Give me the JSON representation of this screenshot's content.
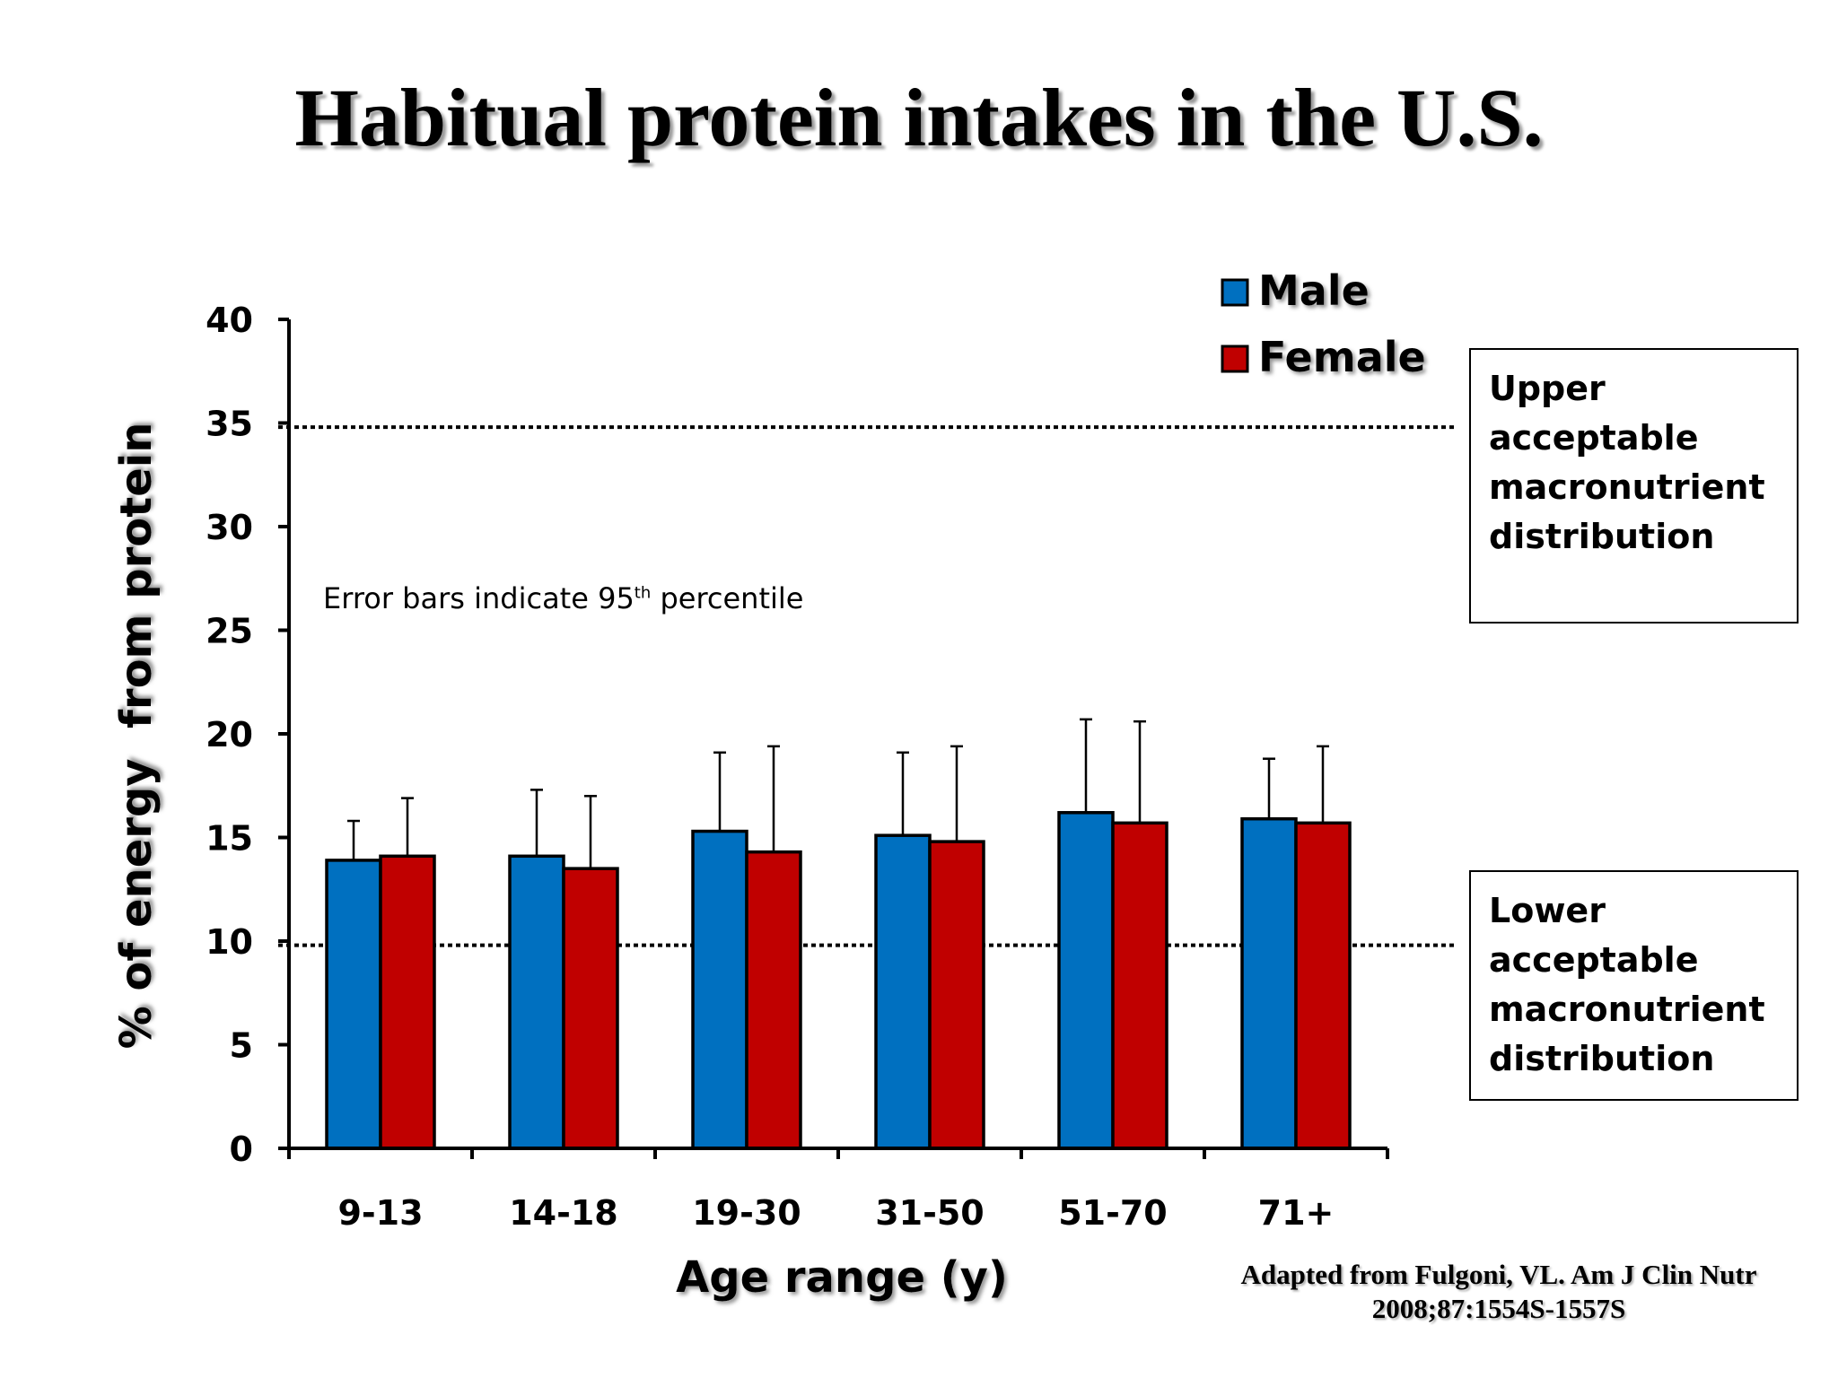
{
  "title": "Habitual protein intakes in the U.S.",
  "error_note": {
    "text": "Error bars indicate 95",
    "sup": "th",
    "suffix": " percentile"
  },
  "upper_box": "Upper\nacceptable\nmacronutrient\ndistribution",
  "lower_box": "Lower\nacceptable\nmacronutrient\ndistribution",
  "citation": {
    "line1": "Adapted from Fulgoni, VL. Am J Clin Nutr",
    "line2": "2008;87:1554S-1557S"
  },
  "colors": {
    "male": "#0070C0",
    "female": "#C00000"
  },
  "chart_data": {
    "type": "bar",
    "categories": [
      "9-13",
      "14-18",
      "19-30",
      "31-50",
      "51-70",
      "71+"
    ],
    "series": [
      {
        "name": "Male",
        "values": [
          13.9,
          14.1,
          15.3,
          15.1,
          16.2,
          15.9
        ],
        "error_upper": [
          15.8,
          17.3,
          19.1,
          19.1,
          20.7,
          18.8
        ]
      },
      {
        "name": "Female",
        "values": [
          14.1,
          13.5,
          14.3,
          14.8,
          15.7,
          15.7
        ],
        "error_upper": [
          16.9,
          17.0,
          19.4,
          19.4,
          20.6,
          19.4
        ]
      }
    ],
    "xlabel": "Age range (y)",
    "ylabel": "% of energy  from protein",
    "ylim": [
      0,
      40
    ],
    "yticks": [
      0,
      5,
      10,
      15,
      20,
      25,
      30,
      35,
      40
    ],
    "reference_lines": [
      34.8,
      9.8
    ],
    "legend": {
      "position": "top-right",
      "entries": [
        "Male",
        "Female"
      ]
    },
    "grid": false
  }
}
